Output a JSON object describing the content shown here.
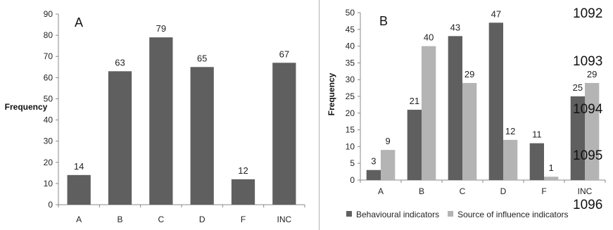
{
  "chart_data": [
    {
      "type": "bar",
      "panel_label": "A",
      "title": "",
      "xlabel": "",
      "ylabel": "Frequency",
      "ylim": [
        0,
        90
      ],
      "yticks": [
        0,
        10,
        20,
        30,
        40,
        50,
        60,
        70,
        80,
        90
      ],
      "categories": [
        "A",
        "B",
        "C",
        "D",
        "F",
        "INC"
      ],
      "series": [
        {
          "values": [
            14,
            63,
            79,
            65,
            12,
            67
          ],
          "color": "#5f5f5f"
        }
      ],
      "grid": false,
      "data_labels": true
    },
    {
      "type": "bar",
      "panel_label": "B",
      "title": "",
      "xlabel": "",
      "ylabel": "Frequency",
      "ylim": [
        0,
        50
      ],
      "yticks": [
        0,
        5,
        10,
        15,
        20,
        25,
        30,
        35,
        40,
        45,
        50
      ],
      "categories": [
        "A",
        "B",
        "C",
        "D",
        "F",
        "INC"
      ],
      "series": [
        {
          "name": "Behavioural indicators",
          "values": [
            3,
            21,
            43,
            47,
            11,
            25
          ],
          "color": "#5f5f5f"
        },
        {
          "name": "Source of influence indicators",
          "values": [
            9,
            40,
            29,
            12,
            1,
            29
          ],
          "color": "#b4b4b4"
        }
      ],
      "legend_position": "bottom",
      "grid": false,
      "data_labels": true
    }
  ],
  "page_numbers": [
    "1092",
    "1093",
    "1094",
    "1095",
    "1096"
  ]
}
